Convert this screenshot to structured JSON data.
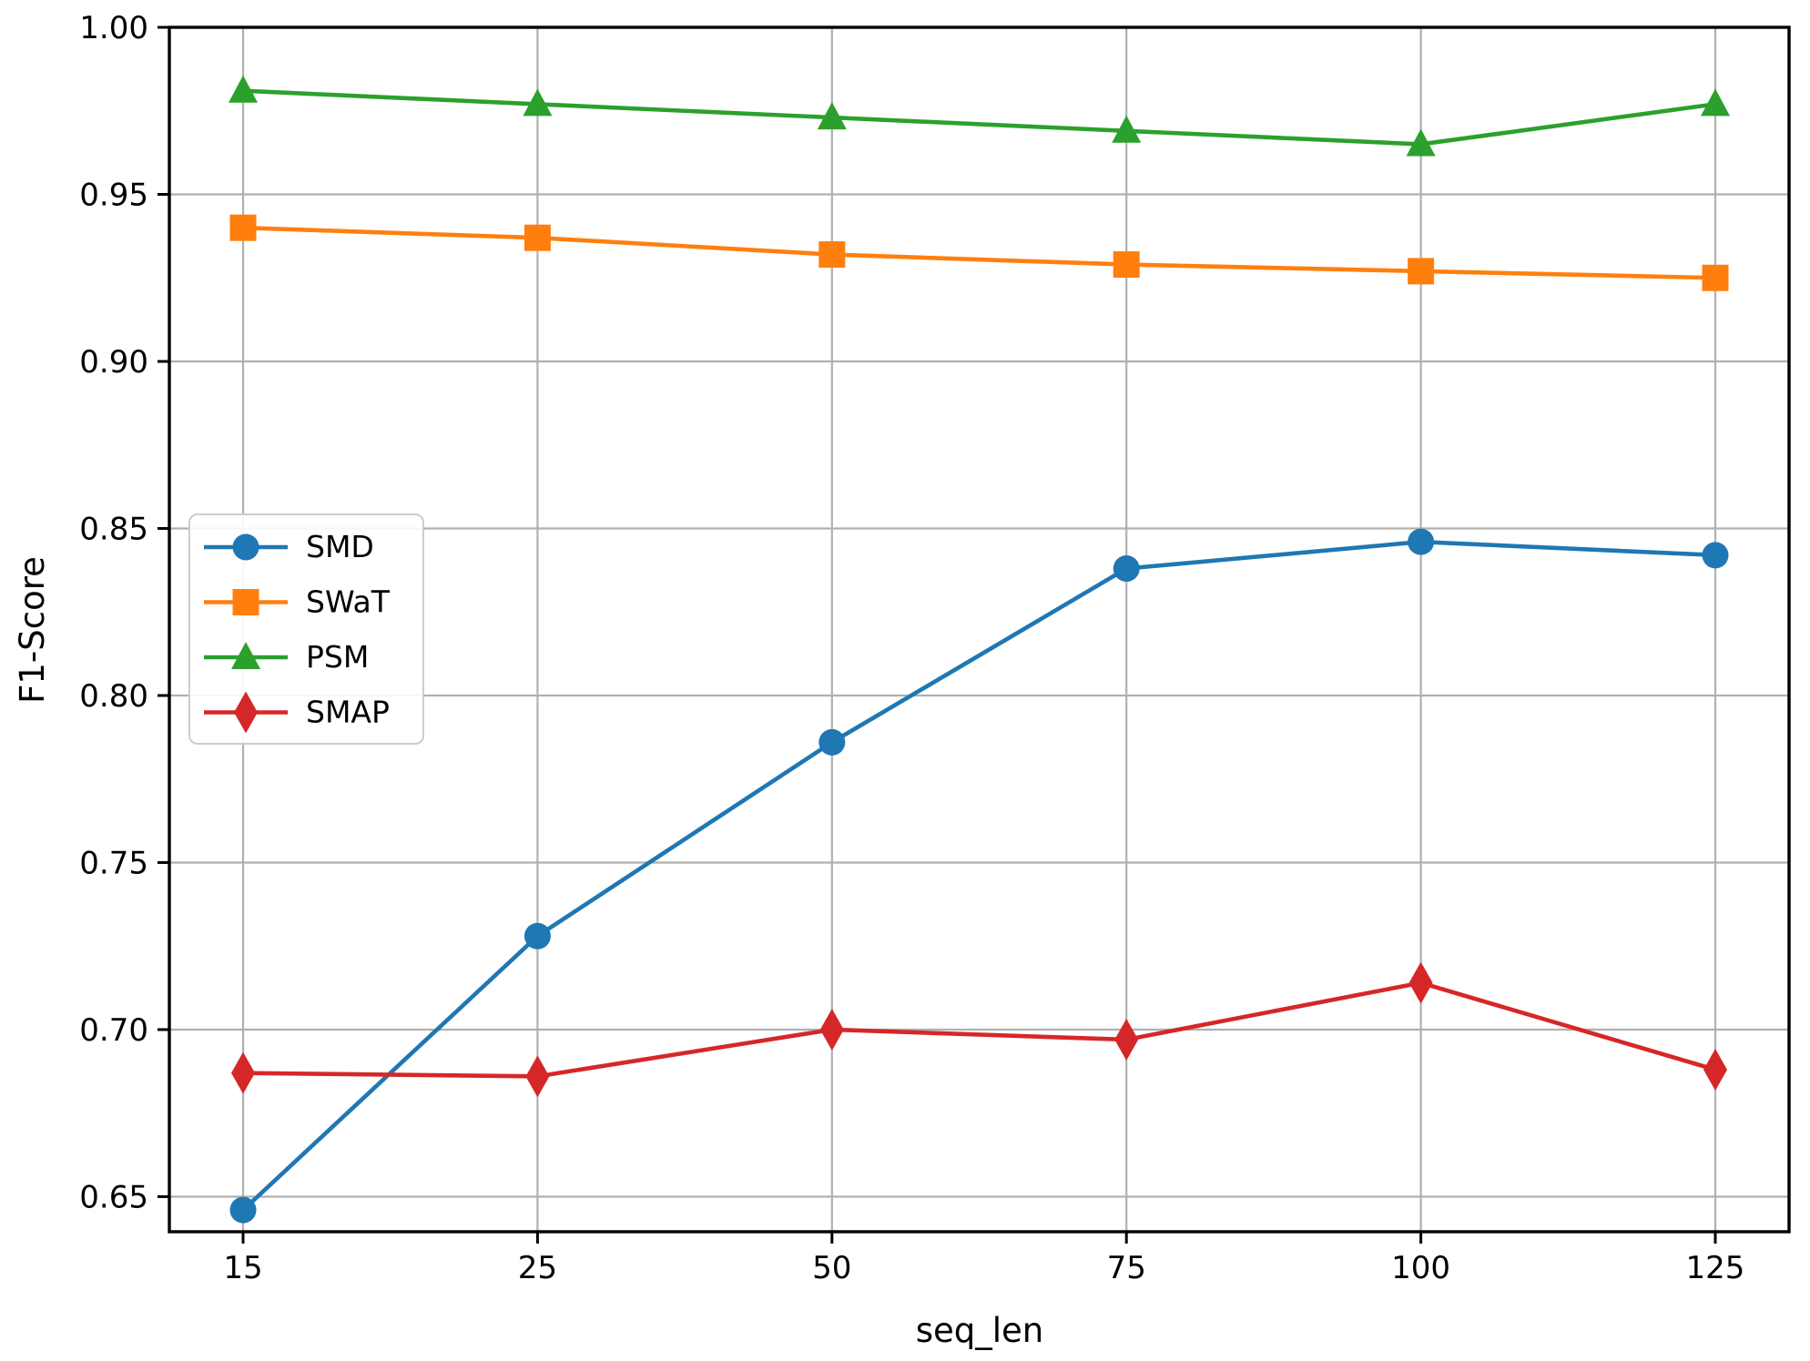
{
  "chart_data": {
    "type": "line",
    "title": "",
    "xlabel": "seq_len",
    "ylabel": "F1-Score",
    "categories": [
      "15",
      "25",
      "50",
      "75",
      "100",
      "125"
    ],
    "y_ticks": [
      1.0,
      0.95,
      0.9,
      0.85,
      0.8,
      0.75,
      0.7,
      0.65
    ],
    "y_tick_labels": [
      "1.00",
      "0.95",
      "0.90",
      "0.85",
      "0.80",
      "0.75",
      "0.70",
      "0.65"
    ],
    "ylim": [
      0.6395,
      1.0
    ],
    "grid": true,
    "legend_position": "upper left inside plot, below 0.85 gridline",
    "series": [
      {
        "name": "SMD",
        "color": "#1f77b4",
        "marker": "circle",
        "values": [
          0.646,
          0.728,
          0.786,
          0.838,
          0.846,
          0.842
        ]
      },
      {
        "name": "SWaT",
        "color": "#ff7f0e",
        "marker": "square",
        "values": [
          0.94,
          0.937,
          0.932,
          0.929,
          0.927,
          0.925
        ]
      },
      {
        "name": "PSM",
        "color": "#2ca02c",
        "marker": "triangle",
        "values": [
          0.981,
          0.977,
          0.973,
          0.969,
          0.965,
          0.977
        ]
      },
      {
        "name": "SMAP",
        "color": "#d62728",
        "marker": "diamond",
        "values": [
          0.687,
          0.686,
          0.7,
          0.697,
          0.714,
          0.688
        ]
      }
    ],
    "style_colors": {
      "grid": "#b0b0b0",
      "spine": "#000000",
      "background": "#ffffff",
      "legend_border": "#cccccc",
      "legend_background": "#ffffff"
    }
  }
}
